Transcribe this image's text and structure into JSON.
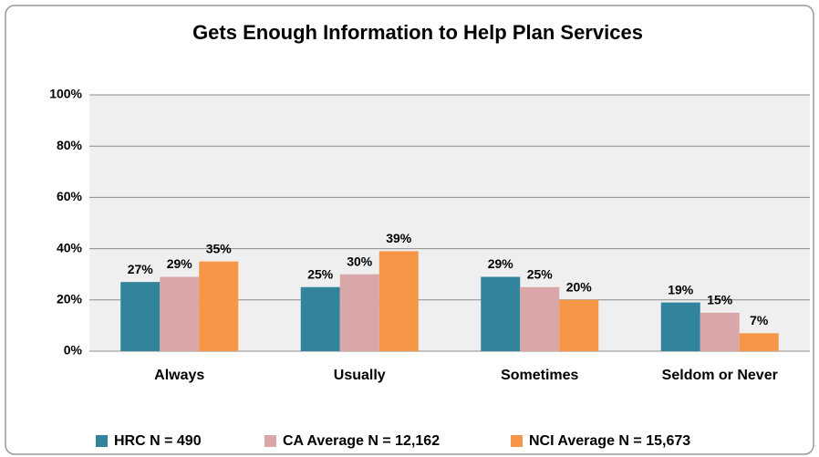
{
  "chart_data": {
    "type": "bar",
    "title": "Gets Enough Information to Help Plan Services",
    "categories": [
      "Always",
      "Usually",
      "Sometimes",
      "Seldom or Never"
    ],
    "series": [
      {
        "name": "HRC N = 490",
        "color": "#31849b",
        "values": [
          27,
          25,
          29,
          19
        ],
        "value_labels": [
          "27%",
          "25%",
          "29%",
          "19%"
        ]
      },
      {
        "name": "CA Average N = 12,162",
        "color": "#d9a7a8",
        "values": [
          29,
          30,
          25,
          15
        ],
        "value_labels": [
          "29%",
          "30%",
          "25%",
          "15%"
        ]
      },
      {
        "name": "NCI Average N = 15,673",
        "color": "#f79646",
        "values": [
          35,
          39,
          20,
          7
        ],
        "value_labels": [
          "35%",
          "39%",
          "20%",
          "7%"
        ]
      }
    ],
    "ylim": [
      0,
      100
    ],
    "yticks": [
      {
        "value": 0,
        "label": "0%"
      },
      {
        "value": 20,
        "label": "20%"
      },
      {
        "value": 40,
        "label": "40%"
      },
      {
        "value": 60,
        "label": "60%"
      },
      {
        "value": 80,
        "label": "80%"
      },
      {
        "value": 100,
        "label": "100%"
      }
    ],
    "grid": true,
    "legend": "bottom"
  }
}
